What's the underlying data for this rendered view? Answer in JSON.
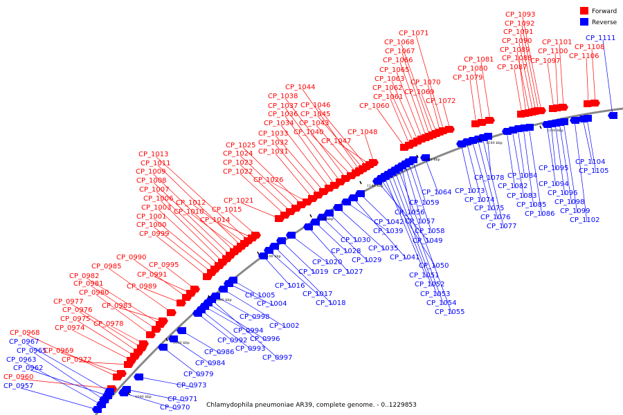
{
  "caption": "Chlamydophila pneumoniae AR39, complete genome. - 0..1229853",
  "legend": {
    "forward_label": "Forward",
    "reverse_label": "Reverse",
    "forward_color": "#ff0000",
    "reverse_color": "#0000ff"
  },
  "colors": {
    "backbone": "#888888",
    "tick": "#000000"
  },
  "ticks": [
    "1040 kbp",
    "1060 kbp",
    "1080 kbp",
    "1100 kbp",
    "1120 kbp",
    "1140 kbp",
    "1160 kbp",
    "1180 kbp",
    "1200 kbp"
  ],
  "genes": [
    {
      "id": "CP_0957",
      "strand": "reverse"
    },
    {
      "id": "CP_0960",
      "strand": "forward"
    },
    {
      "id": "CP_0962",
      "strand": "reverse"
    },
    {
      "id": "CP_0963",
      "strand": "reverse"
    },
    {
      "id": "CP_0965",
      "strand": "reverse"
    },
    {
      "id": "CP_0967",
      "strand": "reverse"
    },
    {
      "id": "CP_0968",
      "strand": "forward"
    },
    {
      "id": "CP_0969",
      "strand": "forward"
    },
    {
      "id": "CP_0970",
      "strand": "reverse"
    },
    {
      "id": "CP_0971",
      "strand": "reverse"
    },
    {
      "id": "CP_0972",
      "strand": "forward"
    },
    {
      "id": "CP_0973",
      "strand": "reverse"
    },
    {
      "id": "CP_0974",
      "strand": "forward"
    },
    {
      "id": "CP_0975",
      "strand": "forward"
    },
    {
      "id": "CP_0976",
      "strand": "forward"
    },
    {
      "id": "CP_0977",
      "strand": "forward"
    },
    {
      "id": "CP_0978",
      "strand": "forward"
    },
    {
      "id": "CP_0979",
      "strand": "reverse"
    },
    {
      "id": "CP_0980",
      "strand": "forward"
    },
    {
      "id": "CP_0981",
      "strand": "forward"
    },
    {
      "id": "CP_0982",
      "strand": "forward"
    },
    {
      "id": "CP_0983",
      "strand": "forward"
    },
    {
      "id": "CP_0984",
      "strand": "reverse"
    },
    {
      "id": "CP_0985",
      "strand": "forward"
    },
    {
      "id": "CP_0986",
      "strand": "reverse"
    },
    {
      "id": "CP_0989",
      "strand": "forward"
    },
    {
      "id": "CP_0990",
      "strand": "forward"
    },
    {
      "id": "CP_0991",
      "strand": "forward"
    },
    {
      "id": "CP_0992",
      "strand": "reverse"
    },
    {
      "id": "CP_0993",
      "strand": "reverse"
    },
    {
      "id": "CP_0994",
      "strand": "reverse"
    },
    {
      "id": "CP_0995",
      "strand": "forward"
    },
    {
      "id": "CP_0996",
      "strand": "reverse"
    },
    {
      "id": "CP_0997",
      "strand": "reverse"
    },
    {
      "id": "CP_0998",
      "strand": "reverse"
    },
    {
      "id": "CP_0999",
      "strand": "forward"
    },
    {
      "id": "CP_1000",
      "strand": "forward"
    },
    {
      "id": "CP_1001",
      "strand": "forward"
    },
    {
      "id": "CP_1002",
      "strand": "reverse"
    },
    {
      "id": "CP_1003",
      "strand": "forward"
    },
    {
      "id": "CP_1004",
      "strand": "reverse"
    },
    {
      "id": "CP_1005",
      "strand": "reverse"
    },
    {
      "id": "CP_1006",
      "strand": "forward"
    },
    {
      "id": "CP_1007",
      "strand": "forward"
    },
    {
      "id": "CP_1008",
      "strand": "forward"
    },
    {
      "id": "CP_1009",
      "strand": "forward"
    },
    {
      "id": "CP_1010",
      "strand": "forward"
    },
    {
      "id": "CP_1011",
      "strand": "forward"
    },
    {
      "id": "CP_1012",
      "strand": "forward"
    },
    {
      "id": "CP_1013",
      "strand": "forward"
    },
    {
      "id": "CP_1014",
      "strand": "forward"
    },
    {
      "id": "CP_1015",
      "strand": "forward"
    },
    {
      "id": "CP_1016",
      "strand": "reverse"
    },
    {
      "id": "CP_1017",
      "strand": "reverse"
    },
    {
      "id": "CP_1018",
      "strand": "reverse"
    },
    {
      "id": "CP_1019",
      "strand": "reverse"
    },
    {
      "id": "CP_1020",
      "strand": "reverse"
    },
    {
      "id": "CP_1021",
      "strand": "forward"
    },
    {
      "id": "CP_1022",
      "strand": "forward"
    },
    {
      "id": "CP_1023",
      "strand": "forward"
    },
    {
      "id": "CP_1024",
      "strand": "forward"
    },
    {
      "id": "CP_1025",
      "strand": "forward"
    },
    {
      "id": "CP_1026",
      "strand": "forward"
    },
    {
      "id": "CP_1027",
      "strand": "reverse"
    },
    {
      "id": "CP_1028",
      "strand": "reverse"
    },
    {
      "id": "CP_1029",
      "strand": "reverse"
    },
    {
      "id": "CP_1030",
      "strand": "reverse"
    },
    {
      "id": "CP_1031",
      "strand": "forward"
    },
    {
      "id": "CP_1032",
      "strand": "forward"
    },
    {
      "id": "CP_1033",
      "strand": "forward"
    },
    {
      "id": "CP_1034",
      "strand": "forward"
    },
    {
      "id": "CP_1035",
      "strand": "reverse"
    },
    {
      "id": "CP_1036",
      "strand": "forward"
    },
    {
      "id": "CP_1037",
      "strand": "forward"
    },
    {
      "id": "CP_1038",
      "strand": "forward"
    },
    {
      "id": "CP_1039",
      "strand": "reverse"
    },
    {
      "id": "CP_1040",
      "strand": "forward"
    },
    {
      "id": "CP_1041",
      "strand": "reverse"
    },
    {
      "id": "CP_1042",
      "strand": "reverse"
    },
    {
      "id": "CP_1043",
      "strand": "forward"
    },
    {
      "id": "CP_1044",
      "strand": "forward"
    },
    {
      "id": "CP_1045",
      "strand": "forward"
    },
    {
      "id": "CP_1046",
      "strand": "forward"
    },
    {
      "id": "CP_1047",
      "strand": "forward"
    },
    {
      "id": "CP_1048",
      "strand": "forward"
    },
    {
      "id": "CP_1049",
      "strand": "reverse"
    },
    {
      "id": "CP_1050",
      "strand": "reverse"
    },
    {
      "id": "CP_1051",
      "strand": "reverse"
    },
    {
      "id": "CP_1052",
      "strand": "reverse"
    },
    {
      "id": "CP_1053",
      "strand": "reverse"
    },
    {
      "id": "CP_1054",
      "strand": "reverse"
    },
    {
      "id": "CP_1055",
      "strand": "reverse"
    },
    {
      "id": "CP_1056",
      "strand": "reverse"
    },
    {
      "id": "CP_1057",
      "strand": "reverse"
    },
    {
      "id": "CP_1058",
      "strand": "reverse"
    },
    {
      "id": "CP_1059",
      "strand": "reverse"
    },
    {
      "id": "CP_1060",
      "strand": "forward"
    },
    {
      "id": "CP_1061",
      "strand": "forward"
    },
    {
      "id": "CP_1062",
      "strand": "forward"
    },
    {
      "id": "CP_1063",
      "strand": "forward"
    },
    {
      "id": "CP_1064",
      "strand": "reverse"
    },
    {
      "id": "CP_1065",
      "strand": "forward"
    },
    {
      "id": "CP_1066",
      "strand": "forward"
    },
    {
      "id": "CP_1067",
      "strand": "forward"
    },
    {
      "id": "CP_1068",
      "strand": "forward"
    },
    {
      "id": "CP_1069",
      "strand": "forward"
    },
    {
      "id": "CP_1070",
      "strand": "forward"
    },
    {
      "id": "CP_1071",
      "strand": "forward"
    },
    {
      "id": "CP_1072",
      "strand": "forward"
    },
    {
      "id": "CP_1073",
      "strand": "reverse"
    },
    {
      "id": "CP_1074",
      "strand": "reverse"
    },
    {
      "id": "CP_1075",
      "strand": "reverse"
    },
    {
      "id": "CP_1076",
      "strand": "reverse"
    },
    {
      "id": "CP_1077",
      "strand": "reverse"
    },
    {
      "id": "CP_1078",
      "strand": "reverse"
    },
    {
      "id": "CP_1079",
      "strand": "forward"
    },
    {
      "id": "CP_1080",
      "strand": "forward"
    },
    {
      "id": "CP_1081",
      "strand": "forward"
    },
    {
      "id": "CP_1082",
      "strand": "reverse"
    },
    {
      "id": "CP_1083",
      "strand": "reverse"
    },
    {
      "id": "CP_1084",
      "strand": "reverse"
    },
    {
      "id": "CP_1085",
      "strand": "reverse"
    },
    {
      "id": "CP_1086",
      "strand": "reverse"
    },
    {
      "id": "CP_1087",
      "strand": "forward"
    },
    {
      "id": "CP_1088",
      "strand": "forward"
    },
    {
      "id": "CP_1089",
      "strand": "forward"
    },
    {
      "id": "CP_1090",
      "strand": "forward"
    },
    {
      "id": "CP_1091",
      "strand": "forward"
    },
    {
      "id": "CP_1092",
      "strand": "forward"
    },
    {
      "id": "CP_1093",
      "strand": "forward"
    },
    {
      "id": "CP_1094",
      "strand": "reverse"
    },
    {
      "id": "CP_1095",
      "strand": "reverse"
    },
    {
      "id": "CP_1096",
      "strand": "reverse"
    },
    {
      "id": "CP_1097",
      "strand": "forward"
    },
    {
      "id": "CP_1098",
      "strand": "reverse"
    },
    {
      "id": "CP_1099",
      "strand": "reverse"
    },
    {
      "id": "CP_1100",
      "strand": "forward"
    },
    {
      "id": "CP_1101",
      "strand": "forward"
    },
    {
      "id": "CP_1102",
      "strand": "reverse"
    },
    {
      "id": "CP_1104",
      "strand": "reverse"
    },
    {
      "id": "CP_1105",
      "strand": "reverse"
    },
    {
      "id": "CP_1106",
      "strand": "forward"
    },
    {
      "id": "CP_1108",
      "strand": "forward"
    },
    {
      "id": "CP_1111",
      "strand": "reverse"
    }
  ]
}
